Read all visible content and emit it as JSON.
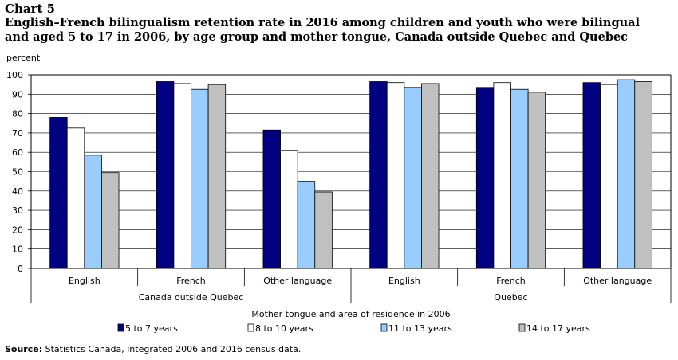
{
  "header": {
    "chart_label": "Chart 5",
    "title": "English–French bilingualism retention rate in 2016 among children and youth who were bilingual and aged 5 to 17 in 2006, by age group and mother tongue, Canada outside Quebec and Quebec"
  },
  "source": {
    "label": "Source:",
    "text": " Statistics Canada, integrated 2006 and 2016 census data."
  },
  "chart_data": {
    "type": "bar",
    "title": "English–French bilingualism retention rate in 2016 among children and youth who were bilingual and aged 5 to 17 in 2006, by age group and mother tongue, Canada outside Quebec and Quebec",
    "ylabel": "percent",
    "xlabel": "Mother tongue and area of residence in 2006",
    "ylim": [
      0,
      100
    ],
    "yticks": [
      0,
      10,
      20,
      30,
      40,
      50,
      60,
      70,
      80,
      90,
      100
    ],
    "groups": [
      "Canada outside Quebec",
      "Quebec"
    ],
    "categories": [
      "English",
      "French",
      "Other language",
      "English",
      "French",
      "Other language"
    ],
    "category_groups": [
      0,
      0,
      0,
      1,
      1,
      1
    ],
    "series": [
      {
        "name": "5 to 7 years",
        "color": "#000080",
        "values": [
          78,
          96.5,
          71.5,
          96.5,
          93.5,
          96
        ]
      },
      {
        "name": "8 to 10 years",
        "color": "#ffffff",
        "values": [
          72.5,
          95.5,
          61,
          96,
          96,
          95
        ]
      },
      {
        "name": "11 to 13 years",
        "color": "#99ccff",
        "values": [
          58.5,
          92.5,
          45,
          93.5,
          92.5,
          97.5
        ]
      },
      {
        "name": "14 to 17 years",
        "color": "#c0c0c0",
        "values": [
          49.5,
          95,
          39.5,
          95.5,
          91,
          96.5
        ]
      }
    ],
    "grid": true,
    "legend_position": "bottom"
  }
}
